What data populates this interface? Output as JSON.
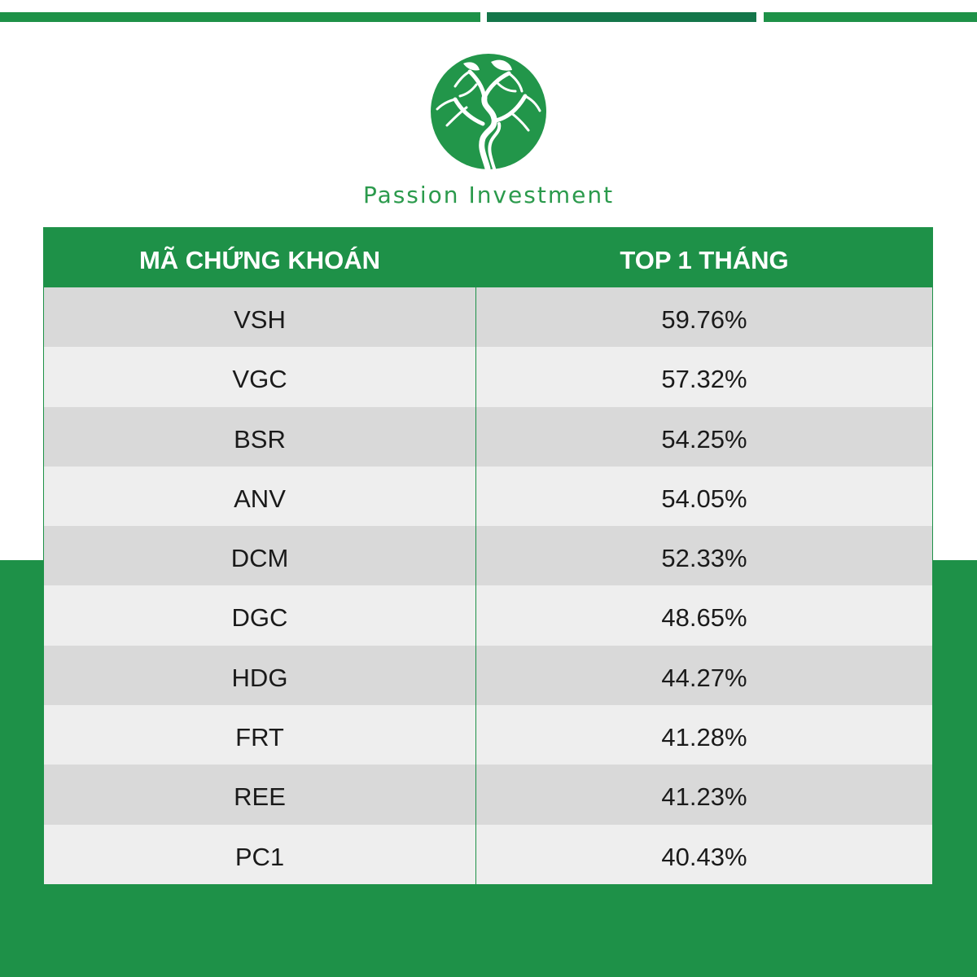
{
  "brand": {
    "name": "Passion Investment",
    "colors": {
      "primary": "#1e9148",
      "dark_accent": "#14764a",
      "row_odd": "#d9d9d9",
      "row_even": "#eeeeee"
    },
    "logo_icon": "tree-circle-logo"
  },
  "table": {
    "headers": {
      "code": "MÃ CHỨNG KHOÁN",
      "top": "TOP 1 THÁNG"
    },
    "rows": [
      {
        "code": "VSH",
        "value": "59.76%"
      },
      {
        "code": "VGC",
        "value": "57.32%"
      },
      {
        "code": "BSR",
        "value": "54.25%"
      },
      {
        "code": "ANV",
        "value": "54.05%"
      },
      {
        "code": "DCM",
        "value": "52.33%"
      },
      {
        "code": "DGC",
        "value": "48.65%"
      },
      {
        "code": "HDG",
        "value": "44.27%"
      },
      {
        "code": "FRT",
        "value": "41.28%"
      },
      {
        "code": "REE",
        "value": "41.23%"
      },
      {
        "code": "PC1",
        "value": "40.43%"
      }
    ]
  }
}
